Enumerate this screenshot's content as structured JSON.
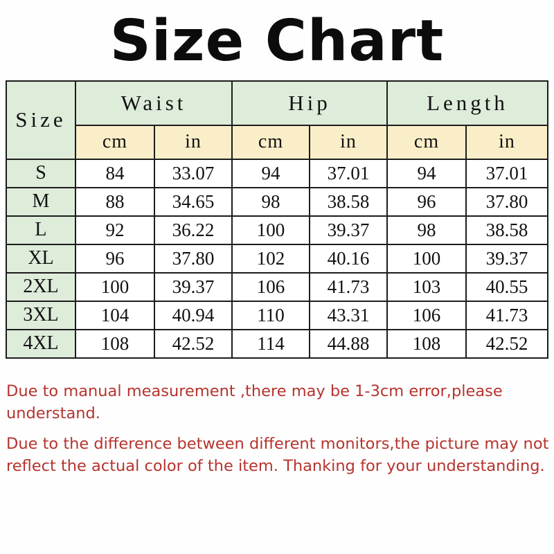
{
  "title": "Size Chart",
  "table": {
    "corner_label": "Size",
    "group_headers": [
      "Waist",
      "Hip",
      "Length"
    ],
    "unit_headers": [
      "cm",
      "in",
      "cm",
      "in",
      "cm",
      "in"
    ],
    "rows": [
      {
        "size": "S",
        "values": [
          "84",
          "33.07",
          "94",
          "37.01",
          "94",
          "37.01"
        ]
      },
      {
        "size": "M",
        "values": [
          "88",
          "34.65",
          "98",
          "38.58",
          "96",
          "37.80"
        ]
      },
      {
        "size": "L",
        "values": [
          "92",
          "36.22",
          "100",
          "39.37",
          "98",
          "38.58"
        ]
      },
      {
        "size": "XL",
        "values": [
          "96",
          "37.80",
          "102",
          "40.16",
          "100",
          "39.37"
        ]
      },
      {
        "size": "2XL",
        "values": [
          "100",
          "39.37",
          "106",
          "41.73",
          "103",
          "40.55"
        ]
      },
      {
        "size": "3XL",
        "values": [
          "104",
          "40.94",
          "110",
          "43.31",
          "106",
          "41.73"
        ]
      },
      {
        "size": "4XL",
        "values": [
          "108",
          "42.52",
          "114",
          "44.88",
          "108",
          "42.52"
        ]
      }
    ]
  },
  "disclaimer": {
    "line1": "Due to manual measurement ,there may be 1-3cm error,please understand.",
    "line2": "Due to the difference between different monitors,the picture may not reflect the actual color of the item. Thanking for your understanding."
  },
  "colors": {
    "header_green": "#deecda",
    "unit_yellow": "#faeec9",
    "disclaimer_red": "#b5342e",
    "border": "#1c1c1c"
  }
}
